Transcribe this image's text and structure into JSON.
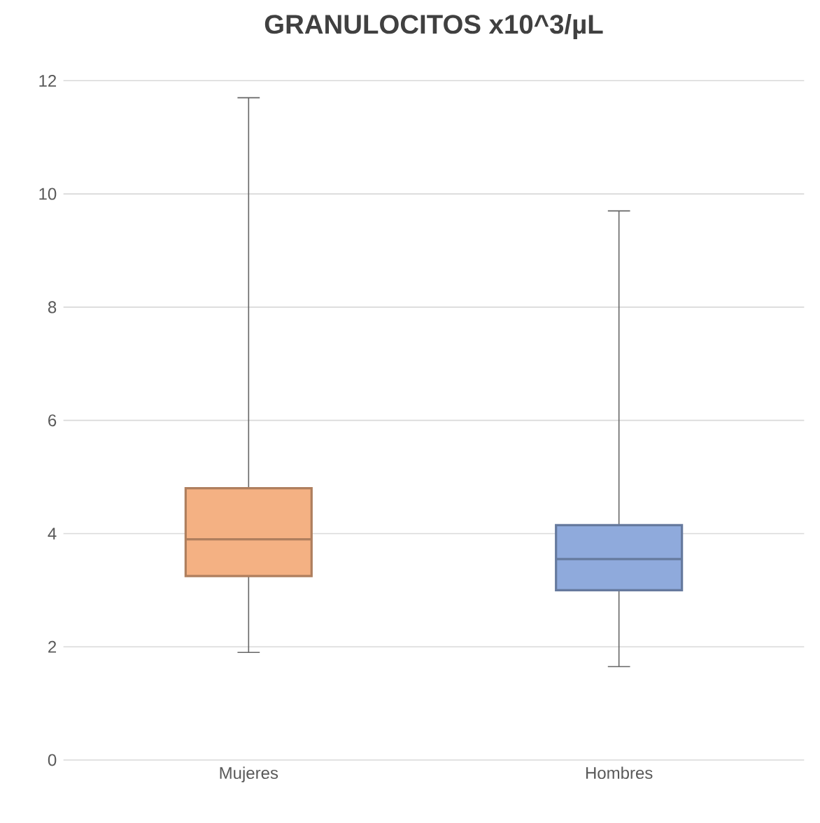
{
  "chart_data": {
    "type": "box",
    "title": "GRANULOCITOS x10^3/µL",
    "categories": [
      "Mujeres",
      "Hombres"
    ],
    "boxes": [
      {
        "low": 1.9,
        "q1": 3.25,
        "median": 3.9,
        "q3": 4.8,
        "high": 11.7
      },
      {
        "low": 1.65,
        "q1": 3.0,
        "median": 3.55,
        "q3": 4.15,
        "high": 9.7
      }
    ],
    "colors": [
      "#f4b183",
      "#8faadc"
    ],
    "ylim": [
      0,
      12
    ],
    "yticks": [
      0,
      2,
      4,
      6,
      8,
      10,
      12
    ],
    "grid": "y"
  }
}
